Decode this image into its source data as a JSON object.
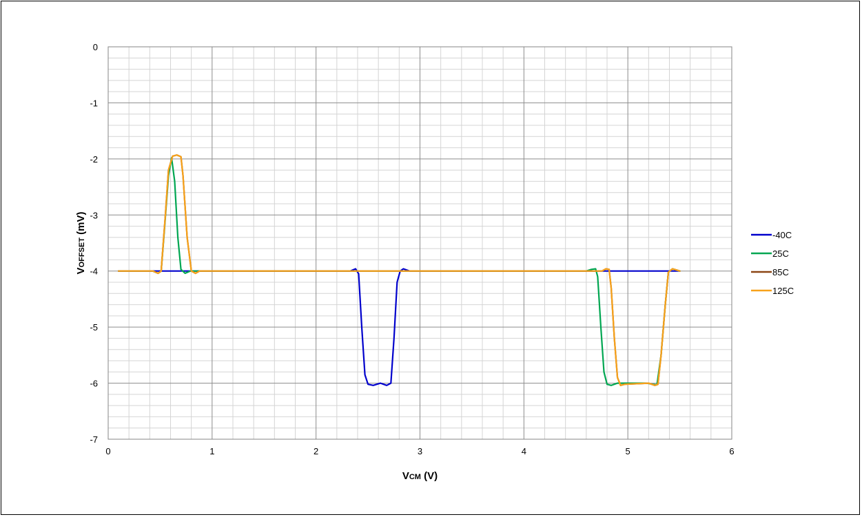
{
  "chart_data": {
    "type": "line",
    "title": "",
    "xlabel": {
      "main": "V",
      "sub": "CM",
      "rest": " (V)"
    },
    "ylabel": {
      "main": "V",
      "sub": "OFFSET",
      "rest": " (mV)"
    },
    "xlim": [
      0,
      6
    ],
    "ylim": [
      -7,
      0
    ],
    "x_ticks": [
      "0",
      "1",
      "2",
      "3",
      "4",
      "5",
      "6"
    ],
    "y_ticks": [
      "0",
      "-1",
      "-2",
      "-3",
      "-4",
      "-5",
      "-6",
      "-7"
    ],
    "grid": true,
    "legend_position": "right",
    "series": [
      {
        "name": "-40C",
        "color": "#0000cc",
        "points": [
          [
            0.1,
            -4
          ],
          [
            2.33,
            -4
          ],
          [
            2.38,
            -3.96
          ],
          [
            2.41,
            -4.05
          ],
          [
            2.44,
            -5
          ],
          [
            2.47,
            -5.85
          ],
          [
            2.5,
            -6.02
          ],
          [
            2.55,
            -6.04
          ],
          [
            2.62,
            -6.0
          ],
          [
            2.68,
            -6.04
          ],
          [
            2.72,
            -6.0
          ],
          [
            2.75,
            -5.2
          ],
          [
            2.78,
            -4.2
          ],
          [
            2.81,
            -4.0
          ],
          [
            2.84,
            -3.96
          ],
          [
            2.9,
            -4
          ],
          [
            5.5,
            -4
          ]
        ]
      },
      {
        "name": "25C",
        "color": "#00a651",
        "points": [
          [
            0.1,
            -4
          ],
          [
            0.43,
            -4
          ],
          [
            0.48,
            -4.04
          ],
          [
            0.51,
            -4.0
          ],
          [
            0.54,
            -3.3
          ],
          [
            0.58,
            -2.3
          ],
          [
            0.61,
            -1.98
          ],
          [
            0.64,
            -2.4
          ],
          [
            0.67,
            -3.4
          ],
          [
            0.7,
            -3.97
          ],
          [
            0.74,
            -4.04
          ],
          [
            0.79,
            -4.0
          ],
          [
            4.6,
            -4
          ],
          [
            4.65,
            -3.97
          ],
          [
            4.69,
            -3.96
          ],
          [
            4.71,
            -4.1
          ],
          [
            4.74,
            -5.0
          ],
          [
            4.77,
            -5.8
          ],
          [
            4.8,
            -6.02
          ],
          [
            4.84,
            -6.04
          ],
          [
            4.9,
            -6.0
          ],
          [
            5.18,
            -6.0
          ],
          [
            5.24,
            -6.02
          ],
          [
            5.28,
            -6.03
          ],
          [
            5.32,
            -5.5
          ],
          [
            5.36,
            -4.6
          ],
          [
            5.39,
            -4.02
          ],
          [
            5.43,
            -3.96
          ],
          [
            5.5,
            -4
          ]
        ]
      },
      {
        "name": "85C",
        "color": "#8b4513",
        "points": [
          [
            0.1,
            -4
          ],
          [
            0.43,
            -4
          ],
          [
            0.48,
            -4.04
          ],
          [
            0.51,
            -4.0
          ],
          [
            0.55,
            -3.0
          ],
          [
            0.58,
            -2.2
          ],
          [
            0.62,
            -1.95
          ],
          [
            0.66,
            -1.93
          ],
          [
            0.7,
            -1.96
          ],
          [
            0.72,
            -2.3
          ],
          [
            0.76,
            -3.4
          ],
          [
            0.8,
            -4.0
          ],
          [
            0.84,
            -4.04
          ],
          [
            0.88,
            -4.0
          ],
          [
            4.75,
            -4
          ],
          [
            4.79,
            -3.96
          ],
          [
            4.82,
            -3.97
          ],
          [
            4.84,
            -4.3
          ],
          [
            4.87,
            -5.2
          ],
          [
            4.9,
            -5.9
          ],
          [
            4.93,
            -6.04
          ],
          [
            4.97,
            -6.02
          ],
          [
            5.2,
            -6.0
          ],
          [
            5.26,
            -6.04
          ],
          [
            5.29,
            -6.02
          ],
          [
            5.32,
            -5.5
          ],
          [
            5.36,
            -4.6
          ],
          [
            5.39,
            -4.02
          ],
          [
            5.43,
            -3.96
          ],
          [
            5.5,
            -4
          ]
        ]
      },
      {
        "name": "125C",
        "color": "#f7a21b",
        "points": [
          [
            0.1,
            -4
          ],
          [
            0.43,
            -4
          ],
          [
            0.48,
            -4.04
          ],
          [
            0.51,
            -4.0
          ],
          [
            0.55,
            -3.0
          ],
          [
            0.58,
            -2.2
          ],
          [
            0.62,
            -1.95
          ],
          [
            0.66,
            -1.93
          ],
          [
            0.7,
            -1.96
          ],
          [
            0.72,
            -2.3
          ],
          [
            0.76,
            -3.4
          ],
          [
            0.8,
            -4.0
          ],
          [
            0.84,
            -4.04
          ],
          [
            0.88,
            -4.0
          ],
          [
            4.75,
            -4
          ],
          [
            4.79,
            -3.96
          ],
          [
            4.82,
            -3.97
          ],
          [
            4.84,
            -4.3
          ],
          [
            4.87,
            -5.2
          ],
          [
            4.9,
            -5.9
          ],
          [
            4.93,
            -6.04
          ],
          [
            4.97,
            -6.02
          ],
          [
            5.2,
            -6.0
          ],
          [
            5.26,
            -6.04
          ],
          [
            5.29,
            -6.02
          ],
          [
            5.32,
            -5.5
          ],
          [
            5.36,
            -4.6
          ],
          [
            5.39,
            -4.02
          ],
          [
            5.43,
            -3.96
          ],
          [
            5.5,
            -4
          ]
        ]
      }
    ]
  }
}
